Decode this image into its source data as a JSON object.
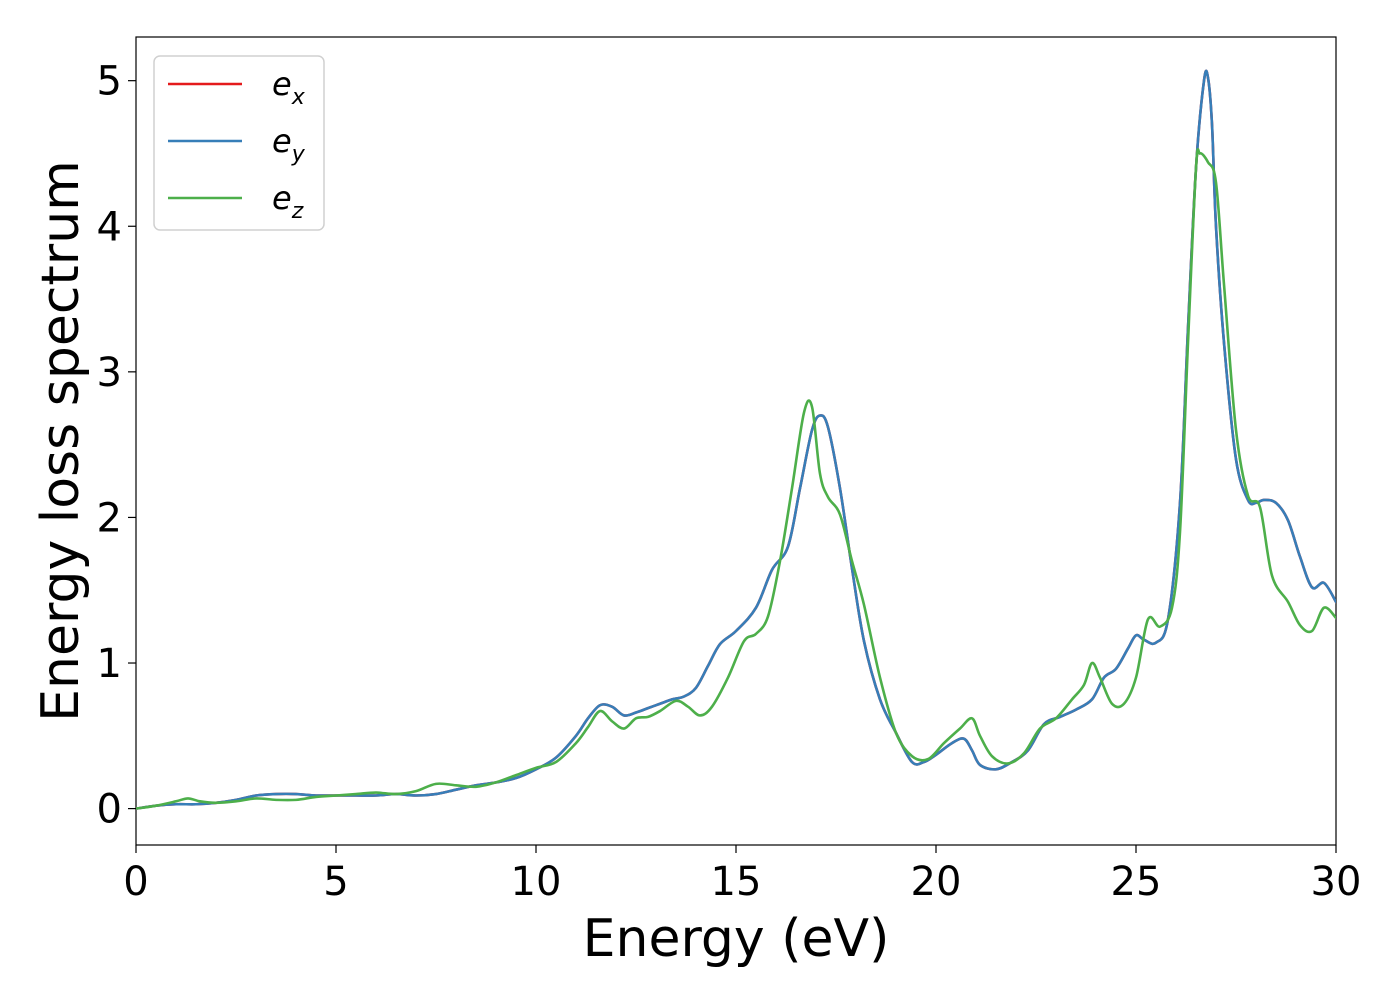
{
  "chart_data": {
    "type": "line",
    "title": "",
    "xlabel": "Energy (eV)",
    "ylabel": "Energy loss spectrum",
    "xlim": [
      0,
      30
    ],
    "ylim": [
      -0.25,
      5.3
    ],
    "xticks": [
      0,
      5,
      10,
      15,
      20,
      25,
      30
    ],
    "yticks": [
      0,
      1,
      2,
      3,
      4,
      5
    ],
    "xtick_labels": [
      "0",
      "5",
      "10",
      "15",
      "20",
      "25",
      "30"
    ],
    "ytick_labels": [
      "0",
      "1",
      "2",
      "3",
      "4",
      "5"
    ],
    "grid": false,
    "legend_position": "top-left",
    "series": [
      {
        "name": "e_x",
        "label_main": "e",
        "label_sub": "x",
        "color": "#e41a1c",
        "x": [
          0,
          0.5,
          1,
          1.5,
          2,
          2.5,
          3,
          3.5,
          4,
          4.5,
          5,
          5.5,
          6,
          6.5,
          7,
          7.5,
          8,
          8.5,
          9,
          9.5,
          10,
          10.5,
          11,
          11.3,
          11.6,
          11.9,
          12.2,
          12.5,
          12.8,
          13.1,
          13.4,
          13.7,
          14,
          14.3,
          14.6,
          15,
          15.5,
          15.9,
          16.3,
          16.6,
          16.9,
          17.1,
          17.3,
          17.6,
          17.9,
          18.2,
          18.6,
          19,
          19.4,
          19.7,
          20,
          20.4,
          20.7,
          20.9,
          21.1,
          21.5,
          21.9,
          22.3,
          22.7,
          23.1,
          23.5,
          23.9,
          24.2,
          24.5,
          24.8,
          25,
          25.2,
          25.5,
          25.8,
          26.1,
          26.3,
          26.5,
          26.7,
          26.8,
          26.9,
          27,
          27.2,
          27.5,
          27.8,
          28,
          28.2,
          28.5,
          28.8,
          29.1,
          29.4,
          29.7,
          30
        ],
        "y": [
          0,
          0.02,
          0.03,
          0.03,
          0.04,
          0.06,
          0.09,
          0.1,
          0.1,
          0.09,
          0.09,
          0.09,
          0.09,
          0.1,
          0.09,
          0.1,
          0.13,
          0.16,
          0.18,
          0.21,
          0.27,
          0.35,
          0.5,
          0.62,
          0.71,
          0.7,
          0.64,
          0.66,
          0.69,
          0.72,
          0.75,
          0.77,
          0.83,
          0.98,
          1.13,
          1.22,
          1.38,
          1.64,
          1.8,
          2.2,
          2.6,
          2.7,
          2.62,
          2.2,
          1.65,
          1.15,
          0.75,
          0.52,
          0.32,
          0.32,
          0.37,
          0.45,
          0.48,
          0.4,
          0.3,
          0.27,
          0.32,
          0.4,
          0.58,
          0.63,
          0.68,
          0.75,
          0.9,
          0.96,
          1.1,
          1.19,
          1.16,
          1.14,
          1.3,
          2.1,
          3.3,
          4.4,
          5.0,
          5.02,
          4.7,
          4.0,
          3.2,
          2.4,
          2.12,
          2.1,
          2.12,
          2.1,
          1.98,
          1.73,
          1.52,
          1.55,
          1.42
        ]
      },
      {
        "name": "e_y",
        "label_main": "e",
        "label_sub": "y",
        "color": "#377eb8",
        "x": [
          0,
          0.5,
          1,
          1.5,
          2,
          2.5,
          3,
          3.5,
          4,
          4.5,
          5,
          5.5,
          6,
          6.5,
          7,
          7.5,
          8,
          8.5,
          9,
          9.5,
          10,
          10.5,
          11,
          11.3,
          11.6,
          11.9,
          12.2,
          12.5,
          12.8,
          13.1,
          13.4,
          13.7,
          14,
          14.3,
          14.6,
          15,
          15.5,
          15.9,
          16.3,
          16.6,
          16.9,
          17.1,
          17.3,
          17.6,
          17.9,
          18.2,
          18.6,
          19,
          19.4,
          19.7,
          20,
          20.4,
          20.7,
          20.9,
          21.1,
          21.5,
          21.9,
          22.3,
          22.7,
          23.1,
          23.5,
          23.9,
          24.2,
          24.5,
          24.8,
          25,
          25.2,
          25.5,
          25.8,
          26.1,
          26.3,
          26.5,
          26.7,
          26.8,
          26.9,
          27,
          27.2,
          27.5,
          27.8,
          28,
          28.2,
          28.5,
          28.8,
          29.1,
          29.4,
          29.7,
          30
        ],
        "y": [
          0,
          0.02,
          0.03,
          0.03,
          0.04,
          0.06,
          0.09,
          0.1,
          0.1,
          0.09,
          0.09,
          0.09,
          0.09,
          0.1,
          0.09,
          0.1,
          0.13,
          0.16,
          0.18,
          0.21,
          0.27,
          0.35,
          0.5,
          0.62,
          0.71,
          0.7,
          0.64,
          0.66,
          0.69,
          0.72,
          0.75,
          0.77,
          0.83,
          0.98,
          1.13,
          1.22,
          1.38,
          1.64,
          1.8,
          2.2,
          2.6,
          2.7,
          2.62,
          2.2,
          1.65,
          1.15,
          0.75,
          0.52,
          0.32,
          0.32,
          0.37,
          0.45,
          0.48,
          0.4,
          0.3,
          0.27,
          0.32,
          0.4,
          0.58,
          0.63,
          0.68,
          0.75,
          0.9,
          0.96,
          1.1,
          1.19,
          1.16,
          1.14,
          1.3,
          2.1,
          3.3,
          4.4,
          5.0,
          5.02,
          4.7,
          4.0,
          3.2,
          2.4,
          2.12,
          2.1,
          2.12,
          2.1,
          1.98,
          1.73,
          1.52,
          1.55,
          1.42
        ]
      },
      {
        "name": "e_z",
        "label_main": "e",
        "label_sub": "z",
        "color": "#4daf4a",
        "x": [
          0,
          0.5,
          1,
          1.3,
          1.6,
          2,
          2.5,
          3,
          3.5,
          4,
          4.5,
          5,
          5.5,
          6,
          6.5,
          7,
          7.5,
          8,
          8.5,
          9,
          9.5,
          10,
          10.5,
          11,
          11.3,
          11.6,
          11.9,
          12.2,
          12.5,
          12.8,
          13.1,
          13.5,
          13.8,
          14.1,
          14.4,
          14.8,
          15.2,
          15.5,
          15.8,
          16.1,
          16.4,
          16.7,
          16.9,
          17.1,
          17.3,
          17.6,
          17.9,
          18.2,
          18.6,
          19,
          19.4,
          19.8,
          20.2,
          20.6,
          20.9,
          21.1,
          21.4,
          21.8,
          22.2,
          22.6,
          23,
          23.4,
          23.7,
          23.9,
          24.1,
          24.4,
          24.7,
          25,
          25.3,
          25.6,
          25.9,
          26.1,
          26.3,
          26.5,
          26.6,
          26.8,
          27,
          27.2,
          27.5,
          27.8,
          28.1,
          28.4,
          28.8,
          29.1,
          29.4,
          29.7,
          30
        ],
        "y": [
          0,
          0.02,
          0.05,
          0.07,
          0.05,
          0.04,
          0.05,
          0.07,
          0.06,
          0.06,
          0.08,
          0.09,
          0.1,
          0.11,
          0.1,
          0.12,
          0.17,
          0.16,
          0.15,
          0.18,
          0.23,
          0.28,
          0.32,
          0.45,
          0.56,
          0.67,
          0.6,
          0.55,
          0.62,
          0.63,
          0.67,
          0.74,
          0.7,
          0.64,
          0.7,
          0.9,
          1.15,
          1.2,
          1.32,
          1.7,
          2.2,
          2.72,
          2.76,
          2.3,
          2.14,
          2.02,
          1.7,
          1.4,
          0.9,
          0.52,
          0.36,
          0.34,
          0.45,
          0.55,
          0.62,
          0.5,
          0.36,
          0.31,
          0.38,
          0.55,
          0.62,
          0.75,
          0.85,
          1.0,
          0.9,
          0.72,
          0.72,
          0.9,
          1.3,
          1.25,
          1.38,
          1.9,
          3.2,
          4.4,
          4.5,
          4.44,
          4.3,
          3.6,
          2.6,
          2.15,
          2.07,
          1.6,
          1.42,
          1.26,
          1.22,
          1.38,
          1.31
        ]
      }
    ]
  }
}
